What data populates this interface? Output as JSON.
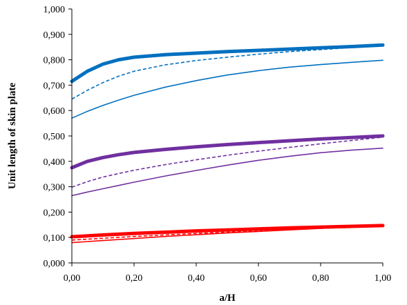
{
  "chart_data": {
    "type": "line",
    "title": "",
    "xlabel": "a/H",
    "ylabel": "Unit length of skin plate",
    "xlim": [
      0,
      1
    ],
    "ylim": [
      0,
      1
    ],
    "x_ticks": [
      "0,00",
      "0,20",
      "0,40",
      "0,60",
      "0,80",
      "1,00"
    ],
    "y_ticks": [
      "0,000",
      "0,100",
      "0,200",
      "0,300",
      "0,400",
      "0,500",
      "0,600",
      "0,700",
      "0,800",
      "0,900",
      "1,000"
    ],
    "grid": false,
    "legend": "none",
    "series": [
      {
        "color": "#0070C0",
        "style": "thick",
        "x": [
          0,
          0.05,
          0.1,
          0.15,
          0.2,
          0.3,
          0.4,
          0.5,
          0.6,
          0.7,
          0.8,
          0.9,
          1.0
        ],
        "y": [
          0.715,
          0.755,
          0.783,
          0.8,
          0.81,
          0.82,
          0.826,
          0.832,
          0.837,
          0.842,
          0.847,
          0.852,
          0.858
        ]
      },
      {
        "color": "#0070C0",
        "style": "dashed",
        "x": [
          0,
          0.05,
          0.1,
          0.15,
          0.2,
          0.3,
          0.4,
          0.5,
          0.6,
          0.7,
          0.8,
          0.9,
          1.0
        ],
        "y": [
          0.645,
          0.68,
          0.71,
          0.735,
          0.755,
          0.78,
          0.797,
          0.81,
          0.822,
          0.832,
          0.84,
          0.848,
          0.855
        ]
      },
      {
        "color": "#0070C0",
        "style": "thin",
        "x": [
          0,
          0.05,
          0.1,
          0.15,
          0.2,
          0.3,
          0.4,
          0.5,
          0.6,
          0.7,
          0.8,
          0.9,
          1.0
        ],
        "y": [
          0.57,
          0.597,
          0.62,
          0.641,
          0.66,
          0.692,
          0.718,
          0.74,
          0.757,
          0.771,
          0.781,
          0.79,
          0.798
        ]
      },
      {
        "color": "#7030A0",
        "style": "thick",
        "x": [
          0,
          0.05,
          0.1,
          0.15,
          0.2,
          0.3,
          0.4,
          0.5,
          0.6,
          0.7,
          0.8,
          0.9,
          1.0
        ],
        "y": [
          0.375,
          0.4,
          0.415,
          0.426,
          0.435,
          0.447,
          0.457,
          0.466,
          0.474,
          0.481,
          0.488,
          0.494,
          0.5
        ]
      },
      {
        "color": "#7030A0",
        "style": "dashed",
        "x": [
          0,
          0.05,
          0.1,
          0.15,
          0.2,
          0.3,
          0.4,
          0.5,
          0.6,
          0.7,
          0.8,
          0.9,
          1.0
        ],
        "y": [
          0.298,
          0.32,
          0.338,
          0.352,
          0.365,
          0.387,
          0.406,
          0.424,
          0.44,
          0.455,
          0.469,
          0.482,
          0.495
        ]
      },
      {
        "color": "#7030A0",
        "style": "thin",
        "x": [
          0,
          0.05,
          0.1,
          0.15,
          0.2,
          0.3,
          0.4,
          0.5,
          0.6,
          0.7,
          0.8,
          0.9,
          1.0
        ],
        "y": [
          0.265,
          0.279,
          0.292,
          0.305,
          0.318,
          0.342,
          0.364,
          0.385,
          0.404,
          0.42,
          0.434,
          0.444,
          0.452
        ]
      },
      {
        "color": "#FF0000",
        "style": "thick",
        "x": [
          0,
          0.1,
          0.2,
          0.3,
          0.4,
          0.5,
          0.6,
          0.7,
          0.8,
          0.9,
          1.0
        ],
        "y": [
          0.103,
          0.11,
          0.116,
          0.121,
          0.126,
          0.13,
          0.134,
          0.138,
          0.141,
          0.144,
          0.147
        ]
      },
      {
        "color": "#FF0000",
        "style": "dashed",
        "x": [
          0,
          0.1,
          0.2,
          0.3,
          0.4,
          0.5,
          0.6,
          0.7,
          0.8,
          0.9,
          1.0
        ],
        "y": [
          0.09,
          0.097,
          0.104,
          0.11,
          0.116,
          0.121,
          0.126,
          0.131,
          0.136,
          0.14,
          0.145
        ]
      },
      {
        "color": "#FF0000",
        "style": "thin",
        "x": [
          0,
          0.1,
          0.2,
          0.3,
          0.4,
          0.5,
          0.6,
          0.7,
          0.8,
          0.9,
          1.0
        ],
        "y": [
          0.08,
          0.088,
          0.096,
          0.104,
          0.111,
          0.118,
          0.124,
          0.13,
          0.136,
          0.141,
          0.146
        ]
      }
    ]
  }
}
